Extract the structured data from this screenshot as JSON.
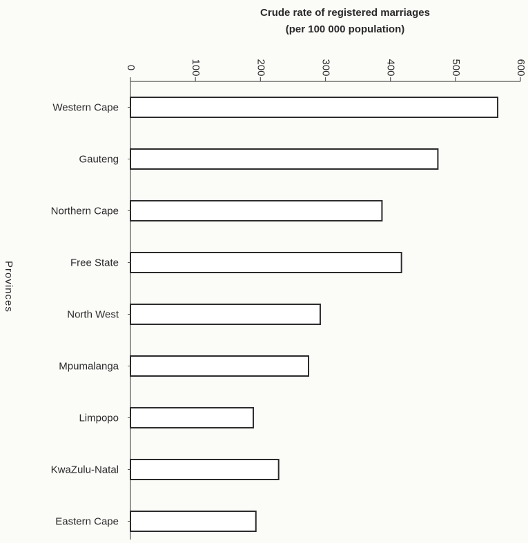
{
  "chart_data": {
    "type": "bar",
    "orientation": "horizontal",
    "title_lines": [
      "Crude rate of registered marriages",
      "(per 100 000 population)"
    ],
    "xlabel": "",
    "ylabel": "Provinces",
    "xlim": [
      0,
      600
    ],
    "ticks": [
      "0",
      "100",
      "200",
      "300",
      "400",
      "500",
      "600"
    ],
    "categories": [
      "Western  Cape",
      "Gauteng",
      "Northern Cape",
      "Free State",
      "North West",
      "Mpumalanga",
      "Limpopo",
      "KwaZulu-Natal",
      "Eastern Cape"
    ],
    "values": [
      565,
      473,
      387,
      417,
      292,
      274,
      189,
      228,
      193
    ],
    "grid": false,
    "bar_fill": "#ffffff",
    "bar_stroke": "#2b2b2b"
  }
}
